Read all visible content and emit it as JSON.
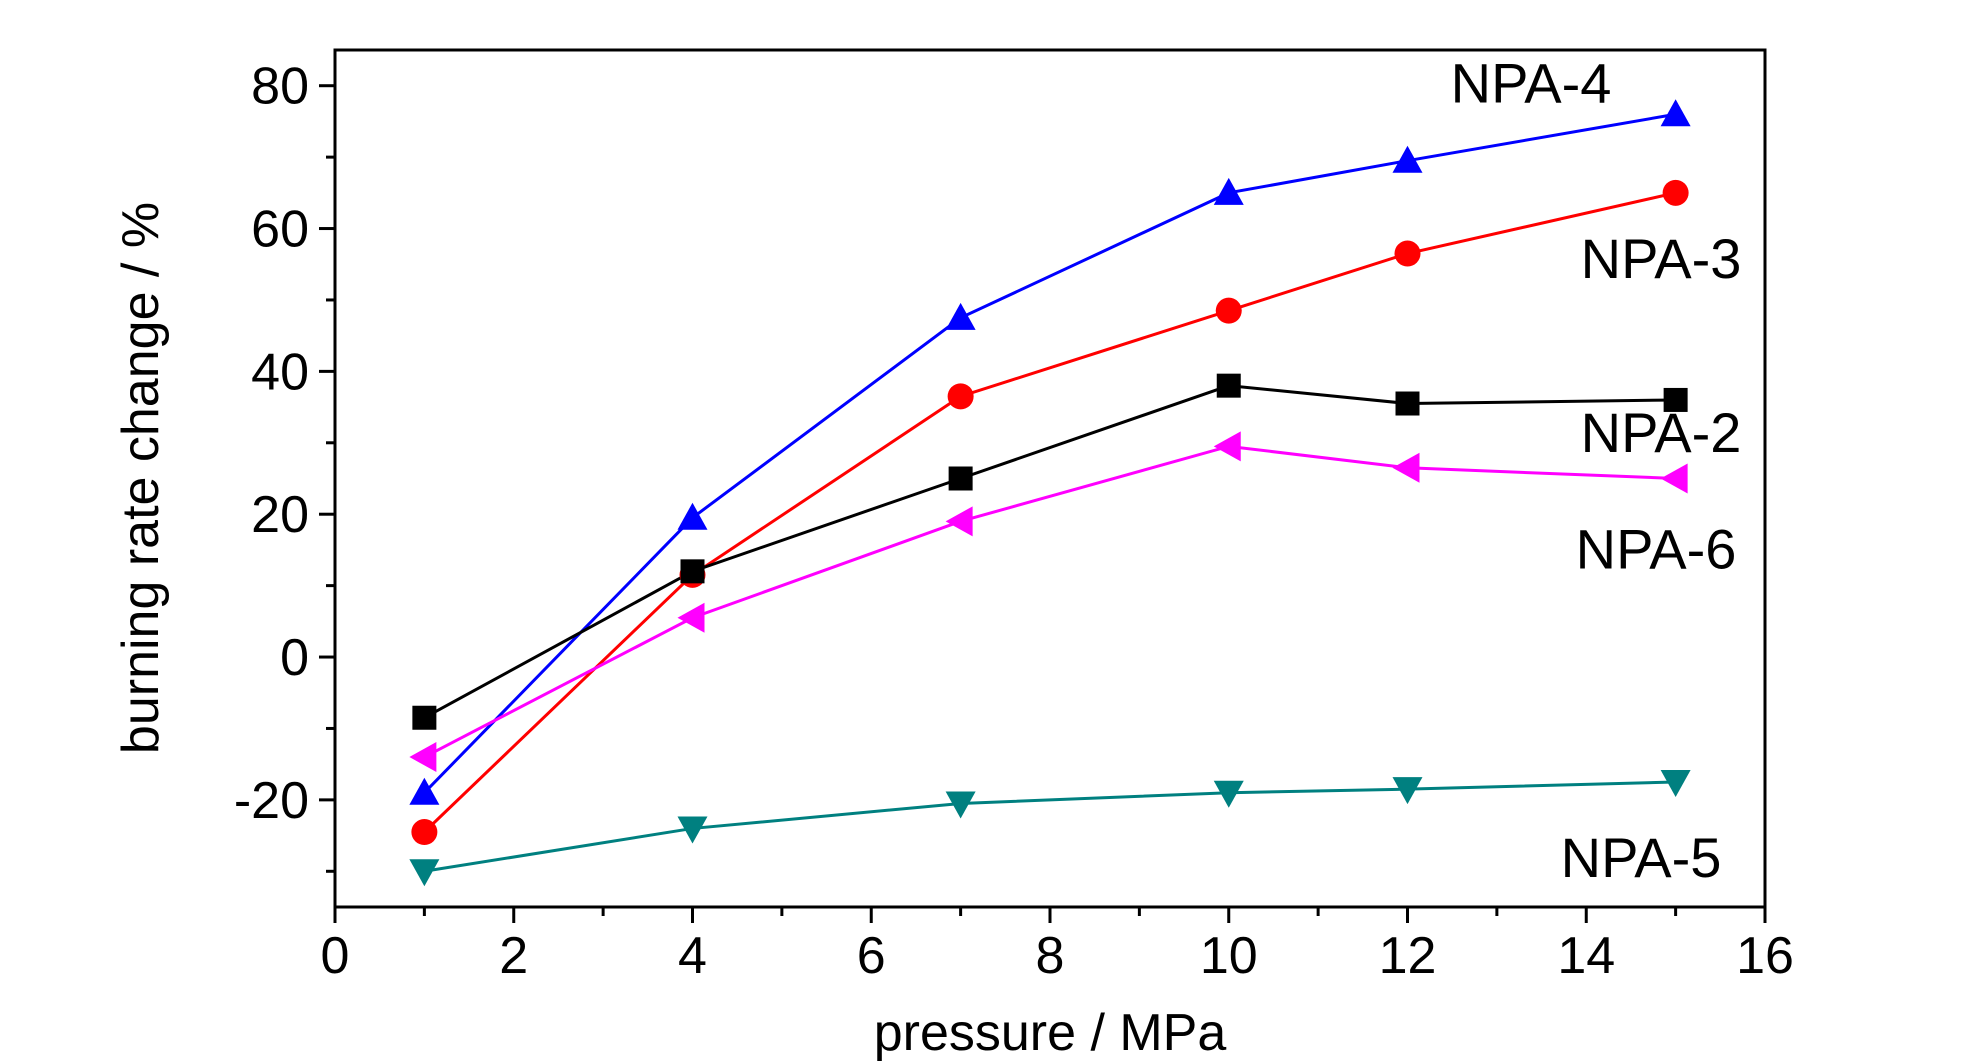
{
  "chart_data": {
    "type": "line",
    "title": "",
    "xlabel": "pressure / MPa",
    "ylabel": "burning rate change / %",
    "xlim": [
      0,
      16
    ],
    "ylim": [
      -35,
      85
    ],
    "xticks": [
      0,
      2,
      4,
      6,
      8,
      10,
      12,
      14,
      16
    ],
    "yticks": [
      -20,
      0,
      20,
      40,
      60,
      80
    ],
    "grid": false,
    "legend": "inline labels at series ends",
    "x": [
      1,
      4,
      7,
      10,
      12,
      15
    ],
    "series": [
      {
        "name": "NPA-4",
        "color": "#0000ff",
        "marker": "triangle-up",
        "values": [
          -19,
          19.5,
          47.5,
          65,
          69.5,
          76
        ]
      },
      {
        "name": "NPA-3",
        "color": "#ff0000",
        "marker": "circle",
        "values": [
          -24.5,
          11.5,
          36.5,
          48.5,
          56.5,
          65
        ]
      },
      {
        "name": "NPA-2",
        "color": "#000000",
        "marker": "square",
        "values": [
          -8.5,
          12,
          25,
          38,
          35.5,
          36
        ]
      },
      {
        "name": "NPA-6",
        "color": "#ff00ff",
        "marker": "triangle-left",
        "values": [
          -14,
          5.5,
          19,
          29.5,
          26.5,
          25
        ]
      },
      {
        "name": "NPA-5",
        "color": "#008080",
        "marker": "triangle-down",
        "values": [
          -30,
          -24,
          -20.5,
          -19,
          -18.5,
          -17.5
        ]
      }
    ]
  }
}
